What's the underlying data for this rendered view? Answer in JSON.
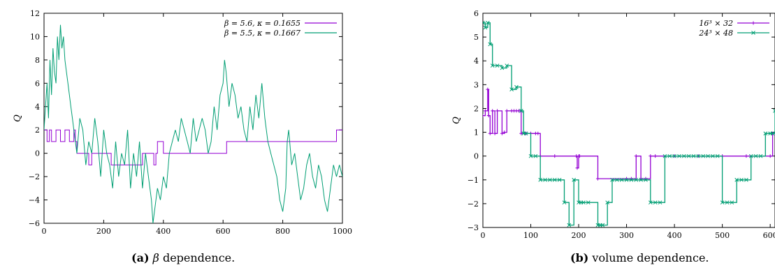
{
  "colors": {
    "purple": "#9400d3",
    "green": "#009e73"
  },
  "captions": {
    "a_label": "(a)",
    "a_sym": "β",
    "a_text": " dependence.",
    "b_label": "(b)",
    "b_text": "volume dependence."
  },
  "chart_data": [
    {
      "type": "line",
      "ylabel": "Q",
      "xlabel": "",
      "xlim": [
        0,
        1000
      ],
      "ylim": [
        -6,
        12
      ],
      "xticks": [
        0,
        200,
        400,
        600,
        800,
        1000
      ],
      "yticks": [
        -6,
        -4,
        -2,
        0,
        2,
        4,
        6,
        8,
        10,
        12
      ],
      "legend_position": "top-right",
      "series": [
        {
          "name": "β = 5.6, κ = 0.1655",
          "color": "#9400d3",
          "step": true,
          "x": [
            0,
            10,
            18,
            25,
            40,
            55,
            70,
            85,
            100,
            105,
            110,
            130,
            150,
            160,
            180,
            200,
            225,
            240,
            260,
            290,
            300,
            330,
            350,
            368,
            375,
            380,
            400,
            430,
            470,
            500,
            520,
            560,
            575,
            580,
            600,
            612,
            620,
            640,
            700,
            730,
            780,
            800,
            830,
            870,
            930,
            950,
            970,
            980,
            990,
            1000
          ],
          "y": [
            2,
            1,
            2,
            1,
            2,
            1,
            2,
            1,
            2,
            1,
            0,
            0,
            -1,
            0,
            0,
            0,
            -1,
            -1,
            -1,
            -1,
            -1,
            0,
            0,
            -1,
            0,
            1,
            0,
            0,
            0,
            0,
            0,
            0,
            0,
            0,
            0,
            1,
            1,
            1,
            1,
            1,
            1,
            1,
            1,
            1,
            1,
            1,
            1,
            2,
            2,
            2
          ]
        },
        {
          "name": "β = 5.5, κ = 0.1667",
          "color": "#009e73",
          "step": false,
          "x": [
            0,
            5,
            10,
            15,
            20,
            25,
            30,
            35,
            40,
            45,
            50,
            55,
            60,
            65,
            70,
            75,
            80,
            85,
            90,
            95,
            100,
            110,
            120,
            130,
            140,
            150,
            160,
            170,
            180,
            190,
            200,
            210,
            220,
            230,
            240,
            250,
            260,
            270,
            280,
            290,
            300,
            310,
            320,
            330,
            340,
            350,
            360,
            365,
            370,
            380,
            390,
            400,
            410,
            420,
            430,
            440,
            450,
            460,
            470,
            480,
            490,
            500,
            510,
            520,
            530,
            540,
            550,
            560,
            570,
            580,
            590,
            600,
            605,
            610,
            620,
            630,
            640,
            650,
            660,
            670,
            680,
            690,
            700,
            710,
            720,
            730,
            740,
            750,
            760,
            770,
            780,
            790,
            800,
            810,
            815,
            820,
            830,
            840,
            850,
            860,
            870,
            880,
            890,
            900,
            910,
            920,
            930,
            940,
            950,
            960,
            970,
            980,
            990,
            1000
          ],
          "y": [
            2,
            4,
            6,
            3,
            8,
            5,
            9,
            7,
            6,
            10,
            8,
            11,
            9,
            10,
            8,
            7,
            6,
            5,
            4,
            3,
            2,
            0,
            3,
            2,
            -1,
            1,
            0,
            3,
            1,
            -2,
            2,
            0,
            -1,
            -3,
            1,
            -2,
            0,
            -1,
            2,
            -3,
            0,
            -2,
            1,
            -3,
            0,
            -2,
            -4,
            -6,
            -5,
            -3,
            -4,
            -2,
            -3,
            0,
            1,
            2,
            1,
            3,
            2,
            1,
            0,
            3,
            1,
            2,
            3,
            2,
            0,
            1,
            4,
            2,
            5,
            6,
            8,
            7,
            4,
            6,
            5,
            3,
            4,
            2,
            1,
            4,
            2,
            5,
            3,
            6,
            3,
            1,
            0,
            -1,
            -2,
            -4,
            -5,
            -3,
            1,
            2,
            -1,
            0,
            -2,
            -4,
            -3,
            -1,
            0,
            -2,
            -3,
            -1,
            -2,
            -4,
            -5,
            -3,
            -1,
            -2,
            -1,
            -2
          ]
        }
      ]
    },
    {
      "type": "line",
      "ylabel": "Q",
      "xlabel": "",
      "xlim": [
        0,
        610
      ],
      "ylim": [
        -3,
        6
      ],
      "xticks": [
        0,
        100,
        200,
        300,
        400,
        500,
        600
      ],
      "xticklabels": [
        "0",
        "100",
        "200",
        "300",
        "400",
        "500",
        "600"
      ],
      "yticks": [
        -3,
        -2,
        -1,
        0,
        1,
        2,
        3,
        4,
        5,
        6
      ],
      "legend_position": "top-right",
      "series": [
        {
          "name": "16³ × 32",
          "color": "#9400d3",
          "marker": "plus",
          "step": true,
          "x": [
            0,
            5,
            10,
            12,
            15,
            20,
            25,
            30,
            40,
            45,
            50,
            60,
            65,
            70,
            75,
            80,
            90,
            100,
            110,
            115,
            120,
            150,
            195,
            197,
            200,
            202,
            240,
            300,
            310,
            320,
            330,
            340,
            350,
            360,
            400,
            450,
            500,
            550,
            600,
            605,
            610
          ],
          "y": [
            1.7,
            1.9,
            2.8,
            1.7,
            0.95,
            1.9,
            0.95,
            1.9,
            0.95,
            1,
            1.9,
            1.9,
            1.9,
            1.9,
            1.9,
            0.95,
            0.95,
            0.95,
            0.95,
            0.95,
            0,
            0,
            0,
            -0.5,
            0,
            0,
            -0.95,
            -0.95,
            -0.95,
            0,
            -0.95,
            -0.95,
            0,
            0,
            0,
            0,
            0,
            0,
            0,
            0.95,
            0.95
          ]
        },
        {
          "name": "24³ × 48",
          "color": "#009e73",
          "marker": "x",
          "step": true,
          "x": [
            0,
            5,
            10,
            15,
            20,
            30,
            40,
            50,
            60,
            70,
            80,
            85,
            90,
            100,
            110,
            120,
            130,
            140,
            150,
            160,
            170,
            180,
            190,
            200,
            205,
            210,
            220,
            240,
            245,
            250,
            260,
            270,
            280,
            290,
            300,
            310,
            320,
            330,
            340,
            350,
            360,
            370,
            380,
            390,
            400,
            410,
            420,
            430,
            440,
            450,
            460,
            470,
            480,
            490,
            500,
            510,
            520,
            530,
            540,
            550,
            560,
            570,
            580,
            590,
            600,
            605,
            610
          ],
          "y": [
            5.6,
            5.4,
            5.6,
            4.7,
            3.8,
            3.8,
            3.7,
            3.8,
            2.8,
            2.9,
            1.9,
            0.95,
            0.95,
            0,
            0,
            -1,
            -1,
            -1,
            -1,
            -1,
            -1.95,
            -2.9,
            -1,
            -1.95,
            -1.95,
            -1.95,
            -1.95,
            -2.9,
            -2.9,
            -2.9,
            -1.95,
            -1,
            -1,
            -1,
            -1,
            -1,
            -1,
            -1,
            -1,
            -1.95,
            -1.95,
            -1.95,
            0,
            0,
            0,
            0,
            0,
            0,
            0,
            0,
            0,
            0,
            0,
            0,
            -1.95,
            -1.95,
            -1.95,
            -1,
            -1,
            -1,
            0,
            0,
            0,
            0.95,
            0.95,
            0.95,
            1.9
          ]
        }
      ]
    }
  ]
}
